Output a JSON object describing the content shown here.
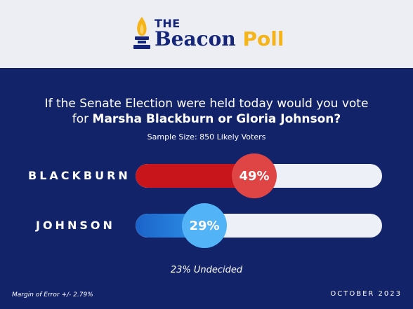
{
  "brand": {
    "the": "THE",
    "name": "Beacon",
    "poll": "Poll"
  },
  "question": {
    "line1": "If the Senate Election were held today would you vote",
    "line2_prefix": "for",
    "line2_bold": "Marsha Blackburn or Gloria Johnson?"
  },
  "sample_size": "Sample Size: 850 Likely Voters",
  "chart_data": {
    "type": "bar",
    "orientation": "horizontal",
    "categories": [
      "BLACKBURN",
      "JOHNSON"
    ],
    "values": [
      49,
      29
    ],
    "labels": [
      "49%",
      "29%"
    ],
    "xlim": [
      0,
      100
    ],
    "colors": [
      "#c8151b",
      "#1b63c9"
    ]
  },
  "undecided": "23% Undecided",
  "margin_of_error": "Margin of Error +/- 2.79%",
  "date": "OCTOBER 2023",
  "colors": {
    "navy": "#132369",
    "gold": "#f5b41a",
    "red": "#c8151b",
    "blue": "#1b63c9"
  }
}
